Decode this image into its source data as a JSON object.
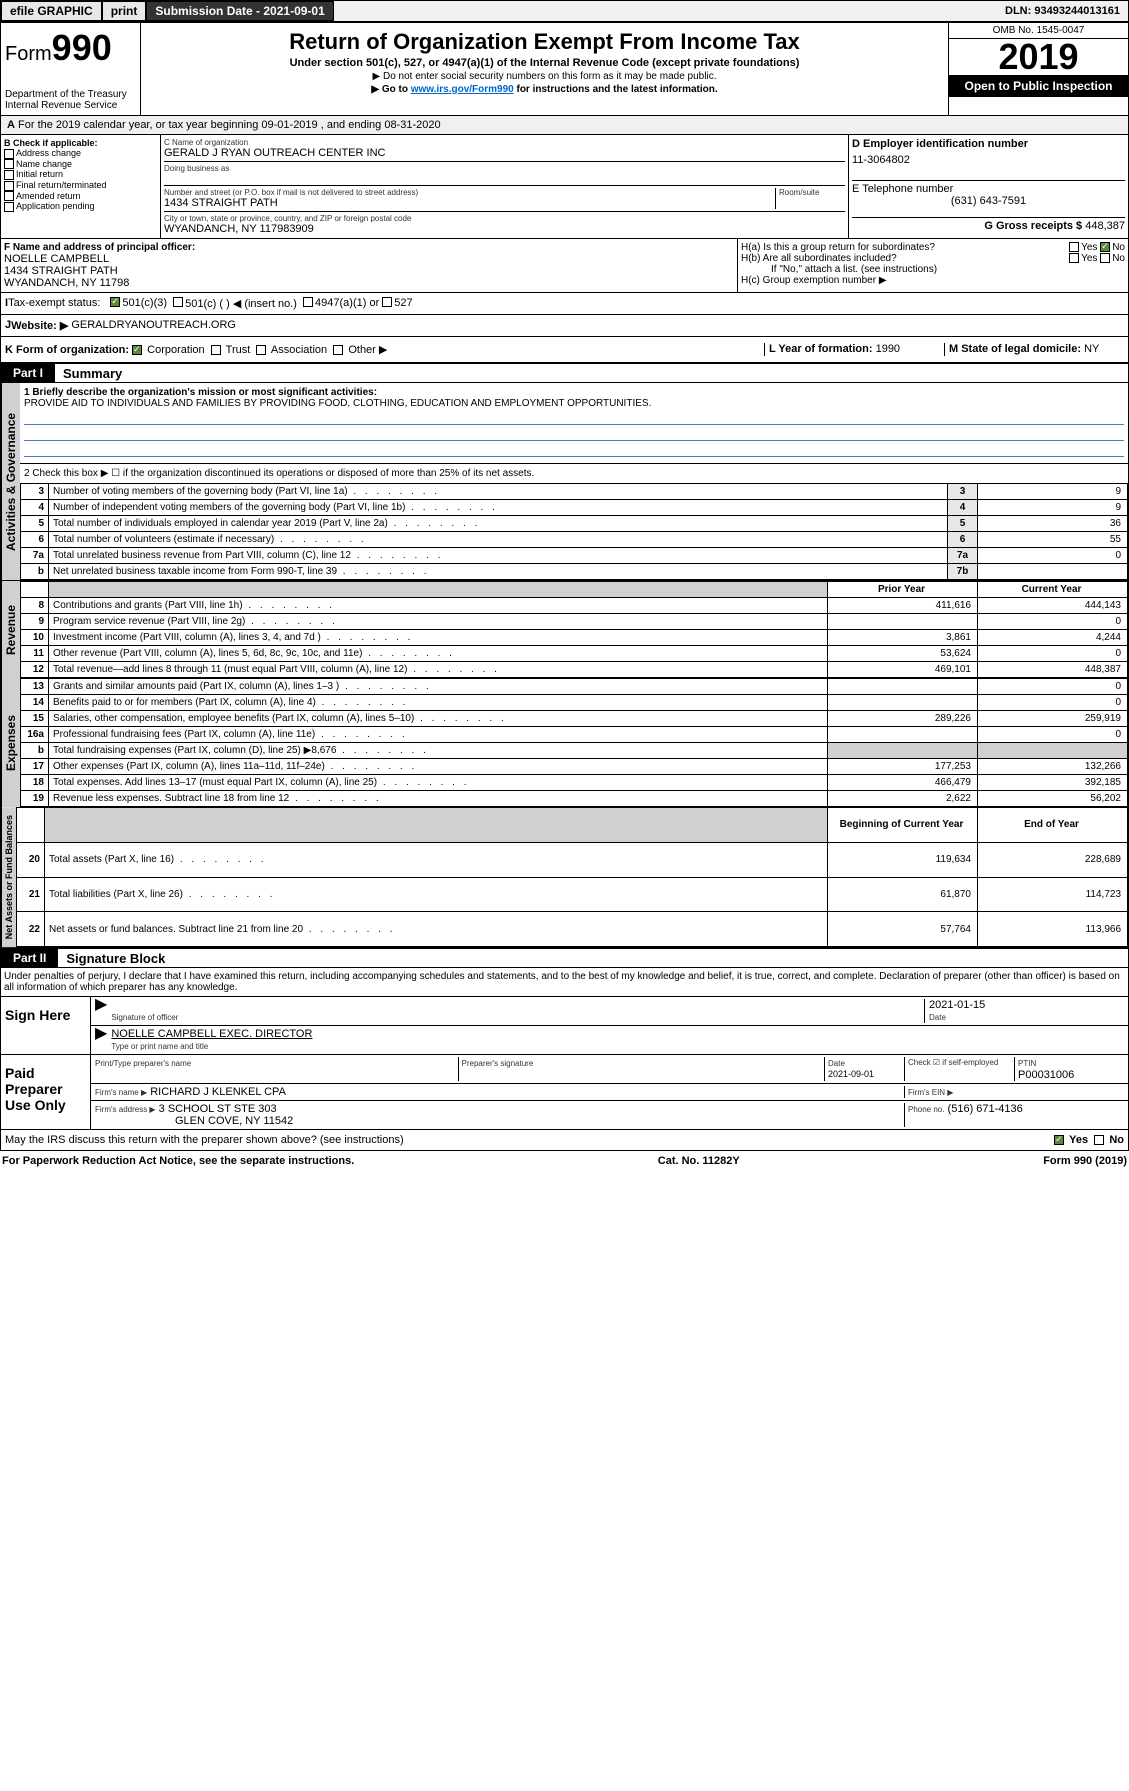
{
  "topbar": {
    "efile": "efile GRAPHIC",
    "print": "print",
    "submission_label": "Submission Date - 2021-09-01",
    "dln": "DLN: 93493244013161"
  },
  "header": {
    "form_word": "Form",
    "form_num": "990",
    "dept": "Department of the Treasury",
    "irs": "Internal Revenue Service",
    "title": "Return of Organization Exempt From Income Tax",
    "subtitle": "Under section 501(c), 527, or 4947(a)(1) of the Internal Revenue Code (except private foundations)",
    "note1": "▶ Do not enter social security numbers on this form as it may be made public.",
    "note2_pre": "▶ Go to ",
    "note2_link": "www.irs.gov/Form990",
    "note2_post": " for instructions and the latest information.",
    "omb": "OMB No. 1545-0047",
    "year": "2019",
    "open": "Open to Public Inspection"
  },
  "section_a": "For the 2019 calendar year, or tax year beginning 09-01-2019    , and ending 08-31-2020",
  "section_b": {
    "label": "B Check if applicable:",
    "opts": [
      "Address change",
      "Name change",
      "Initial return",
      "Final return/terminated",
      "Amended return",
      "Application pending"
    ]
  },
  "section_c": {
    "name_label": "C Name of organization",
    "name": "GERALD J RYAN OUTREACH CENTER INC",
    "dba_label": "Doing business as",
    "addr_label": "Number and street (or P.O. box if mail is not delivered to street address)",
    "room_label": "Room/suite",
    "addr": "1434 STRAIGHT PATH",
    "city_label": "City or town, state or province, country, and ZIP or foreign postal code",
    "city": "WYANDANCH, NY  117983909"
  },
  "section_d": {
    "label": "D Employer identification number",
    "value": "11-3064802"
  },
  "section_e": {
    "label": "E Telephone number",
    "value": "(631) 643-7591"
  },
  "section_g": {
    "label": "G Gross receipts $",
    "value": "448,387"
  },
  "section_f": {
    "label": "F  Name and address of principal officer:",
    "name": "NOELLE CAMPBELL",
    "addr1": "1434 STRAIGHT PATH",
    "addr2": "WYANDANCH, NY  11798"
  },
  "section_h": {
    "ha": "H(a)  Is this a group return for subordinates?",
    "hb": "H(b)  Are all subordinates included?",
    "hb_note": "If \"No,\" attach a list. (see instructions)",
    "hc": "H(c)  Group exemption number ▶",
    "yes": "Yes",
    "no": "No"
  },
  "section_i": {
    "label": "Tax-exempt status:",
    "opt1": "501(c)(3)",
    "opt2": "501(c) (   ) ◀ (insert no.)",
    "opt3": "4947(a)(1) or",
    "opt4": "527"
  },
  "section_j": {
    "label": "Website: ▶",
    "value": "GERALDRYANOUTREACH.ORG"
  },
  "section_k": {
    "label": "K Form of organization:",
    "opts": [
      "Corporation",
      "Trust",
      "Association",
      "Other ▶"
    ]
  },
  "section_l": {
    "label": "L Year of formation:",
    "value": "1990"
  },
  "section_m": {
    "label": "M State of legal domicile:",
    "value": "NY"
  },
  "part1": {
    "header": "Part I",
    "title": "Summary",
    "line1_label": "1  Briefly describe the organization's mission or most significant activities:",
    "line1_text": "PROVIDE AID TO INDIVIDUALS AND FAMILIES BY PROVIDING FOOD, CLOTHING, EDUCATION AND EMPLOYMENT OPPORTUNITIES.",
    "line2": "2   Check this box ▶ ☐  if the organization discontinued its operations or disposed of more than 25% of its net assets.",
    "rows_top": [
      {
        "n": "3",
        "label": "Number of voting members of the governing body (Part VI, line 1a)",
        "box": "3",
        "val": "9"
      },
      {
        "n": "4",
        "label": "Number of independent voting members of the governing body (Part VI, line 1b)",
        "box": "4",
        "val": "9"
      },
      {
        "n": "5",
        "label": "Total number of individuals employed in calendar year 2019 (Part V, line 2a)",
        "box": "5",
        "val": "36"
      },
      {
        "n": "6",
        "label": "Total number of volunteers (estimate if necessary)",
        "box": "6",
        "val": "55"
      },
      {
        "n": "7a",
        "label": "Total unrelated business revenue from Part VIII, column (C), line 12",
        "box": "7a",
        "val": "0"
      },
      {
        "n": "b",
        "label": "Net unrelated business taxable income from Form 990-T, line 39",
        "box": "7b",
        "val": ""
      }
    ],
    "col_prior": "Prior Year",
    "col_current": "Current Year",
    "col_begin": "Beginning of Current Year",
    "col_end": "End of Year",
    "revenue_rows": [
      {
        "n": "8",
        "label": "Contributions and grants (Part VIII, line 1h)",
        "prior": "411,616",
        "curr": "444,143"
      },
      {
        "n": "9",
        "label": "Program service revenue (Part VIII, line 2g)",
        "prior": "",
        "curr": "0"
      },
      {
        "n": "10",
        "label": "Investment income (Part VIII, column (A), lines 3, 4, and 7d )",
        "prior": "3,861",
        "curr": "4,244"
      },
      {
        "n": "11",
        "label": "Other revenue (Part VIII, column (A), lines 5, 6d, 8c, 9c, 10c, and 11e)",
        "prior": "53,624",
        "curr": "0"
      },
      {
        "n": "12",
        "label": "Total revenue—add lines 8 through 11 (must equal Part VIII, column (A), line 12)",
        "prior": "469,101",
        "curr": "448,387"
      }
    ],
    "expense_rows": [
      {
        "n": "13",
        "label": "Grants and similar amounts paid (Part IX, column (A), lines 1–3 )",
        "prior": "",
        "curr": "0"
      },
      {
        "n": "14",
        "label": "Benefits paid to or for members (Part IX, column (A), line 4)",
        "prior": "",
        "curr": "0"
      },
      {
        "n": "15",
        "label": "Salaries, other compensation, employee benefits (Part IX, column (A), lines 5–10)",
        "prior": "289,226",
        "curr": "259,919"
      },
      {
        "n": "16a",
        "label": "Professional fundraising fees (Part IX, column (A), line 11e)",
        "prior": "",
        "curr": "0"
      },
      {
        "n": "b",
        "label": "Total fundraising expenses (Part IX, column (D), line 25) ▶8,676",
        "prior": "GRAY",
        "curr": "GRAY"
      },
      {
        "n": "17",
        "label": "Other expenses (Part IX, column (A), lines 11a–11d, 11f–24e)",
        "prior": "177,253",
        "curr": "132,266"
      },
      {
        "n": "18",
        "label": "Total expenses. Add lines 13–17 (must equal Part IX, column (A), line 25)",
        "prior": "466,479",
        "curr": "392,185"
      },
      {
        "n": "19",
        "label": "Revenue less expenses. Subtract line 18 from line 12",
        "prior": "2,622",
        "curr": "56,202"
      }
    ],
    "net_rows": [
      {
        "n": "20",
        "label": "Total assets (Part X, line 16)",
        "prior": "119,634",
        "curr": "228,689"
      },
      {
        "n": "21",
        "label": "Total liabilities (Part X, line 26)",
        "prior": "61,870",
        "curr": "114,723"
      },
      {
        "n": "22",
        "label": "Net assets or fund balances. Subtract line 21 from line 20",
        "prior": "57,764",
        "curr": "113,966"
      }
    ],
    "vtabs": {
      "gov": "Activities & Governance",
      "rev": "Revenue",
      "exp": "Expenses",
      "net": "Net Assets or Fund Balances"
    }
  },
  "part2": {
    "header": "Part II",
    "title": "Signature Block",
    "perjury": "Under penalties of perjury, I declare that I have examined this return, including accompanying schedules and statements, and to the best of my knowledge and belief, it is true, correct, and complete. Declaration of preparer (other than officer) is based on all information of which preparer has any knowledge.",
    "sign_here": "Sign Here",
    "sig_officer": "Signature of officer",
    "sig_date": "2021-01-15",
    "date_label": "Date",
    "officer_name": "NOELLE CAMPBELL  EXEC. DIRECTOR",
    "type_name": "Type or print name and title",
    "paid": "Paid Preparer Use Only",
    "prep_name_label": "Print/Type preparer's name",
    "prep_sig_label": "Preparer's signature",
    "prep_date_label": "Date",
    "prep_date": "2021-09-01",
    "check_if": "Check ☑ if self-employed",
    "ptin_label": "PTIN",
    "ptin": "P00031006",
    "firm_name_label": "Firm's name    ▶",
    "firm_name": "RICHARD J KLENKEL CPA",
    "firm_ein_label": "Firm's EIN ▶",
    "firm_addr_label": "Firm's address ▶",
    "firm_addr1": "3 SCHOOL ST STE 303",
    "firm_addr2": "GLEN COVE, NY  11542",
    "phone_label": "Phone no.",
    "phone": "(516) 671-4136",
    "discuss": "May the IRS discuss this return with the preparer shown above? (see instructions)",
    "yes": "Yes",
    "no": "No"
  },
  "footer": {
    "left": "For Paperwork Reduction Act Notice, see the separate instructions.",
    "center": "Cat. No. 11282Y",
    "right": "Form 990 (2019)"
  }
}
